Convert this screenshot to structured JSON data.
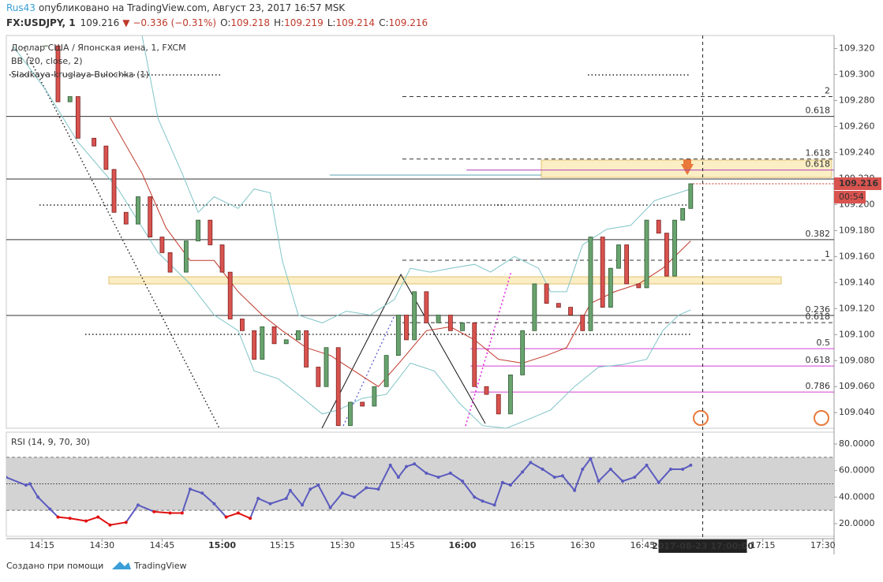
{
  "header": {
    "author": "Rus43",
    "published": "опубликовано на TradingView.com, Август 23, 2017 16:57 MSK",
    "symbol": "FX:USDJPY, 1",
    "price": "109.216",
    "change": "▼ −0.336 (−0.31%)",
    "ohlc": [
      {
        "key": "O:",
        "value": "109.218"
      },
      {
        "key": "H:",
        "value": "109.219"
      },
      {
        "key": "L:",
        "value": "109.214"
      },
      {
        "key": "C:",
        "value": "109.216"
      }
    ]
  },
  "chart_data": [
    {
      "type": "candlestick",
      "title": "Доллар США / Японская иена, 1, FXCM",
      "indicators": [
        "BB (20, close, 2)",
        "Sladkaya-kruglaya-Bulochka (1)"
      ],
      "x": [
        16,
        19,
        22,
        24,
        28,
        31,
        33,
        36,
        39,
        42,
        45,
        47,
        51,
        54,
        57,
        60,
        62,
        65,
        68,
        70,
        73,
        76,
        79,
        81,
        84,
        86,
        89,
        92,
        95,
        98,
        101,
        104,
        106,
        108,
        111,
        114,
        117,
        120,
        123,
        126,
        129,
        132,
        135,
        138,
        141,
        144,
        147,
        150,
        152,
        155,
        157,
        159,
        161,
        164,
        166,
        169,
        171,
        173,
        175,
        177
      ],
      "close": [
        109.322,
        109.279,
        109.283,
        109.251,
        109.245,
        109.227,
        109.194,
        109.185,
        109.206,
        109.175,
        109.163,
        109.148,
        109.172,
        109.188,
        109.169,
        109.148,
        109.112,
        109.103,
        109.081,
        109.106,
        109.093,
        109.096,
        109.103,
        109.075,
        109.06,
        109.09,
        109.03,
        109.048,
        109.045,
        109.06,
        109.084,
        109.115,
        109.096,
        109.133,
        109.109,
        109.115,
        109.103,
        109.109,
        109.06,
        109.054,
        109.039,
        109.069,
        109.103,
        109.139,
        109.124,
        109.121,
        109.115,
        109.103,
        109.175,
        109.121,
        109.151,
        109.169,
        109.139,
        109.136,
        109.188,
        109.178,
        109.145,
        109.188,
        109.197,
        109.216
      ],
      "up_color": "#6aa36f",
      "down_color": "#d9534f",
      "bb_upper": {
        "color": "#7fc4c8",
        "x": [
          40,
          44,
          50,
          54,
          58,
          64,
          68,
          72,
          75,
          79,
          85,
          91,
          97,
          103,
          107,
          112,
          117,
          123,
          127,
          133,
          139,
          142,
          146,
          150,
          156,
          162,
          168,
          174,
          177
        ],
        "values": [
          109.33,
          109.266,
          109.224,
          109.194,
          109.206,
          109.197,
          109.212,
          109.209,
          109.157,
          109.115,
          109.109,
          109.118,
          109.115,
          109.127,
          109.151,
          109.148,
          109.151,
          109.154,
          109.148,
          109.16,
          109.151,
          109.133,
          109.133,
          109.169,
          109.181,
          109.184,
          109.203,
          109.209,
          109.212
        ]
      },
      "bb_lower": {
        "color": "#7fc4c8",
        "x": [
          8,
          16,
          24,
          34,
          44,
          52,
          58,
          64,
          68,
          74,
          79,
          85,
          89,
          95,
          101,
          107,
          113,
          119,
          125,
          131,
          135,
          142,
          148,
          154,
          160,
          166,
          170,
          174,
          177
        ],
        "values": [
          109.321,
          109.288,
          109.248,
          109.212,
          109.163,
          109.139,
          109.115,
          109.103,
          109.072,
          109.066,
          109.054,
          109.039,
          109.042,
          109.051,
          109.054,
          109.078,
          109.072,
          109.048,
          109.03,
          109.028,
          109.033,
          109.042,
          109.06,
          109.075,
          109.077,
          109.081,
          109.103,
          109.115,
          109.119
        ]
      },
      "bb_basis": {
        "color": "#c0392b",
        "x": [
          32,
          40,
          46,
          52,
          58,
          64,
          70,
          75,
          81,
          87,
          93,
          99,
          105,
          111,
          117,
          123,
          129,
          135,
          141,
          146,
          152,
          158,
          164,
          170,
          177
        ],
        "values": [
          109.267,
          109.224,
          109.182,
          109.157,
          109.157,
          109.133,
          109.115,
          109.103,
          109.09,
          109.084,
          109.072,
          109.06,
          109.081,
          109.103,
          109.106,
          109.096,
          109.081,
          109.078,
          109.084,
          109.09,
          109.124,
          109.133,
          109.139,
          109.151,
          109.172
        ]
      },
      "levels": [
        {
          "label": "0.618",
          "value": 109.2678,
          "from": 6.1,
          "color": "#333333",
          "dash": false
        },
        {
          "label": "0.382",
          "value": 109.173,
          "from": 6.1,
          "color": "#333333",
          "dash": false
        },
        {
          "label": "0.236",
          "value": 109.1147,
          "from": 6.1,
          "color": "#333333",
          "dash": false
        },
        {
          "label": "2",
          "value": 109.283,
          "from": 105,
          "color": "#333333",
          "dash": true
        },
        {
          "label": "1.618",
          "value": 109.235,
          "from": 105,
          "color": "#333333",
          "dash": true
        },
        {
          "label": "1",
          "value": 109.1572,
          "from": 105,
          "color": "#333333",
          "dash": true
        },
        {
          "label": "0.618",
          "value": 109.1092,
          "from": 105,
          "color": "#333333",
          "dash": true
        },
        {
          "label": "0.618",
          "value": 109.2265,
          "from": 121,
          "color": "#b040c0",
          "dash": false
        },
        {
          "label": "0.5",
          "value": 109.0892,
          "from": 122,
          "color": "#d040d0",
          "dash": false
        },
        {
          "label": "0.618",
          "value": 109.0758,
          "from": 122,
          "color": "#d040d0",
          "dash": false
        },
        {
          "label": "0.786",
          "value": 109.0558,
          "from": 122,
          "color": "#d040d0",
          "dash": false
        }
      ],
      "last_label": "109.216",
      "countdown": "00:54",
      "xlim": [
        6.1,
        212.8
      ],
      "ylim": [
        109.028,
        109.33
      ],
      "yticks": [
        {
          "value": 109.04,
          "label": "109.040"
        },
        {
          "value": 109.06,
          "label": "109.060"
        },
        {
          "value": 109.08,
          "label": "109.080"
        },
        {
          "value": 109.1,
          "label": "109.100"
        },
        {
          "value": 109.12,
          "label": "109.120"
        },
        {
          "value": 109.14,
          "label": "109.140"
        },
        {
          "value": 109.16,
          "label": "109.160"
        },
        {
          "value": 109.18,
          "label": "109.180"
        },
        {
          "value": 109.2,
          "label": "109.200"
        },
        {
          "value": 109.22,
          "label": "109.220"
        },
        {
          "value": 109.24,
          "label": "109.240"
        },
        {
          "value": 109.26,
          "label": "109.260"
        },
        {
          "value": 109.28,
          "label": "109.280"
        },
        {
          "value": 109.3,
          "label": "109.300"
        },
        {
          "value": 109.32,
          "label": "109.320"
        }
      ],
      "xticks": [
        {
          "value": 15,
          "label": "14:15"
        },
        {
          "value": 30,
          "label": "14:30"
        },
        {
          "value": 45,
          "label": "14:45"
        },
        {
          "value": 60,
          "label": "15:00"
        },
        {
          "value": 75,
          "label": "15:15"
        },
        {
          "value": 90,
          "label": "15:30"
        },
        {
          "value": 105,
          "label": "15:45"
        },
        {
          "value": 120,
          "label": "16:00"
        },
        {
          "value": 135,
          "label": "16:15"
        },
        {
          "value": 150,
          "label": "16:30"
        },
        {
          "value": 165,
          "label": "16:45"
        },
        {
          "value": 195,
          "label": "17:15"
        },
        {
          "value": 210,
          "label": "17:30"
        }
      ],
      "cursor": {
        "value": 180,
        "label": "2017-08-23 17:00:00"
      }
    },
    {
      "type": "line",
      "title": "RSI (14, 9, 70, 30)",
      "x": [
        6,
        11,
        12,
        14,
        17,
        19,
        22,
        26,
        29,
        32,
        36,
        39,
        43,
        47,
        50,
        52,
        55,
        58,
        61,
        64,
        67,
        69,
        72,
        76,
        77,
        80,
        82,
        84,
        87,
        90,
        93,
        96,
        99,
        102,
        104,
        106,
        108,
        111,
        114,
        117,
        120,
        123,
        125,
        128,
        130,
        132,
        135,
        137,
        140,
        143,
        145,
        148,
        150,
        152,
        154,
        157,
        160,
        163,
        166,
        169,
        172,
        175,
        177
      ],
      "values": [
        55,
        49,
        50,
        40,
        31,
        25,
        24,
        22,
        25,
        19,
        21,
        34,
        29,
        28,
        28,
        46,
        43,
        35,
        25,
        28,
        24,
        39,
        35,
        39,
        45,
        34,
        46,
        49,
        32,
        43,
        40,
        47,
        46,
        64,
        55,
        63,
        65,
        58,
        55,
        58,
        52,
        40,
        37,
        34,
        51,
        49,
        59,
        66,
        61,
        55,
        56,
        45,
        61,
        69,
        52,
        61,
        52,
        55,
        64,
        51,
        61,
        61,
        64
      ],
      "color": "#5b5bbf",
      "low_color": "#e01010",
      "bands": [
        70,
        30
      ],
      "mid": 50,
      "xlim": [
        6.1,
        212.8
      ],
      "ylim": [
        10.5,
        88.9
      ],
      "yticks": [
        {
          "value": 20,
          "label": "20.0000"
        },
        {
          "value": 40,
          "label": "40.0000"
        },
        {
          "value": 60,
          "label": "60.0000"
        },
        {
          "value": 80,
          "label": "80.0000"
        }
      ]
    }
  ],
  "footer": {
    "made_with": "Создано при помощи",
    "brand": "TradingView"
  }
}
